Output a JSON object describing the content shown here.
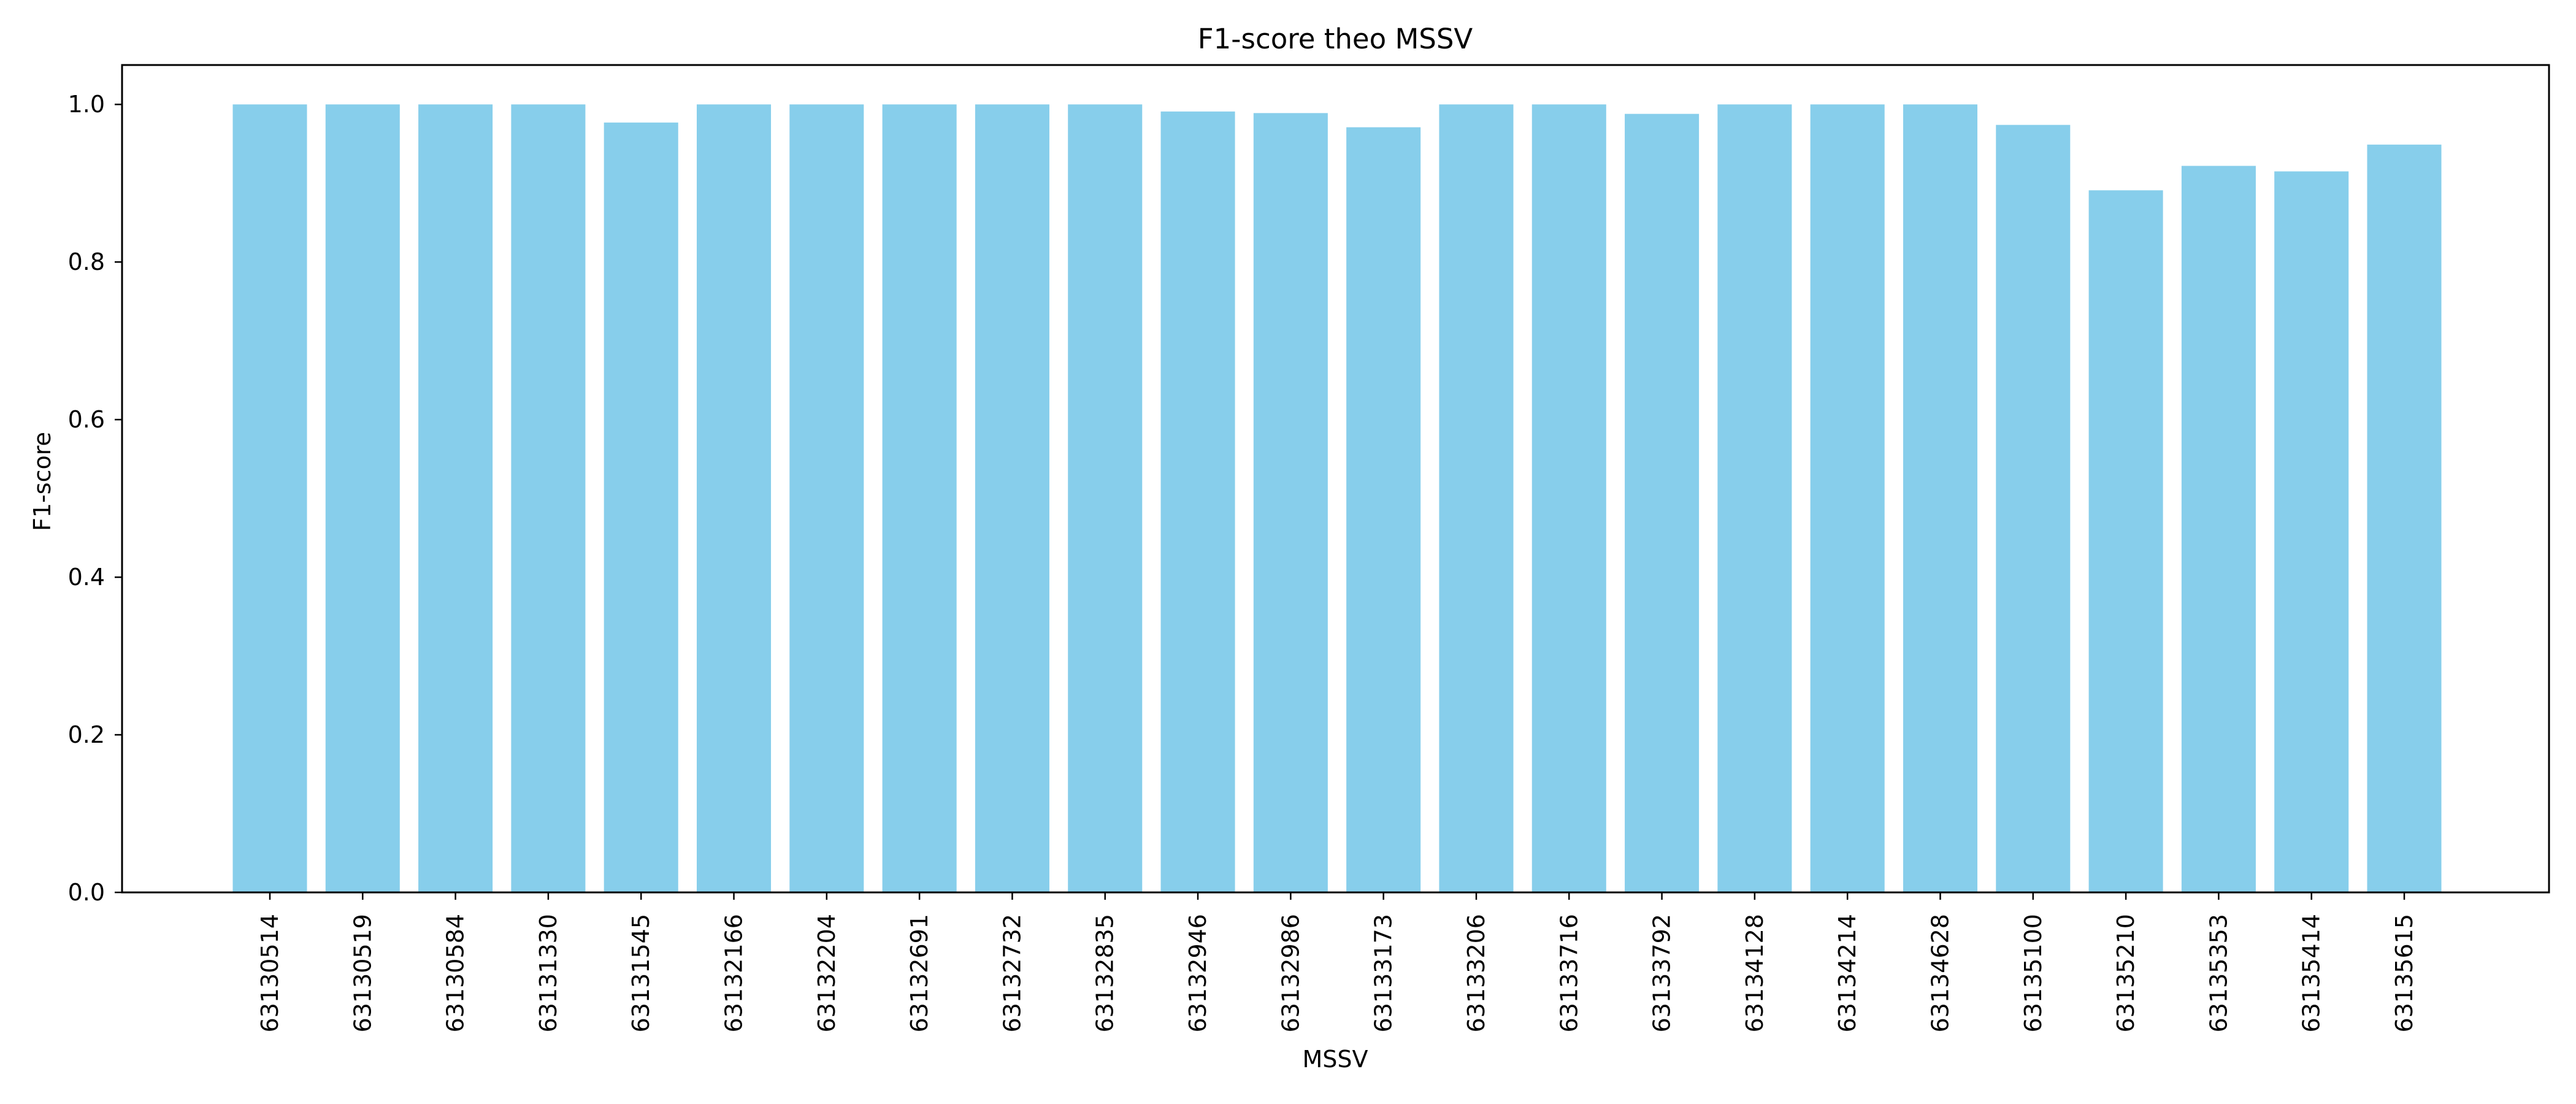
{
  "chart_data": {
    "type": "bar",
    "title": "F1-score theo MSSV",
    "xlabel": "MSSV",
    "ylabel": "F1-score",
    "ylim": [
      0,
      1.05
    ],
    "yticks": [
      "0.0",
      "0.2",
      "0.4",
      "0.6",
      "0.8",
      "1.0"
    ],
    "grid": false,
    "bar_color": "#87CEEB",
    "categories": [
      "63130514",
      "63130519",
      "63130584",
      "63131330",
      "63131545",
      "63132166",
      "63132204",
      "63132691",
      "63132732",
      "63132835",
      "63132946",
      "63132986",
      "63133173",
      "63133206",
      "63133716",
      "63133792",
      "63134128",
      "63134214",
      "63134628",
      "63135100",
      "63135210",
      "63135353",
      "63135414",
      "63135615"
    ],
    "values": [
      1.0,
      1.0,
      1.0,
      1.0,
      0.977,
      1.0,
      1.0,
      1.0,
      1.0,
      1.0,
      0.991,
      0.989,
      0.971,
      1.0,
      1.0,
      0.988,
      1.0,
      1.0,
      1.0,
      0.974,
      0.891,
      0.922,
      0.915,
      0.949
    ]
  }
}
